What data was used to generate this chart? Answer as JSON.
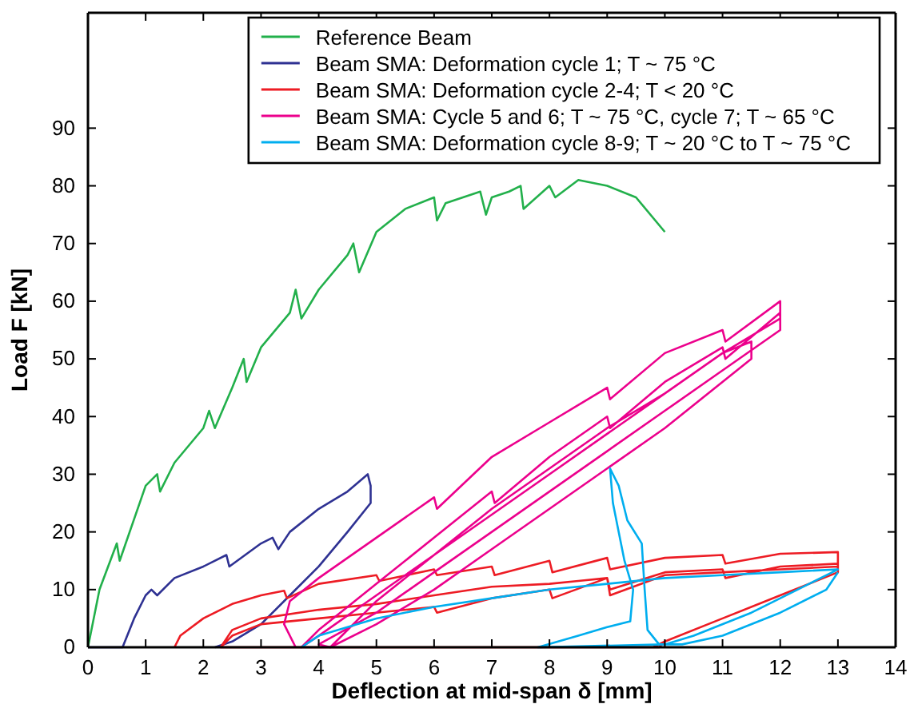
{
  "chart_data": {
    "type": "line",
    "xlabel": "Deflection at mid-span  δ [mm]",
    "ylabel": "Load F [kN]",
    "xlim": [
      0,
      14
    ],
    "ylim": [
      0,
      110
    ],
    "xticks": [
      0,
      1,
      2,
      3,
      4,
      5,
      6,
      7,
      8,
      9,
      10,
      11,
      12,
      13,
      14
    ],
    "yticks": [
      0,
      10,
      20,
      30,
      40,
      50,
      60,
      70,
      80,
      90
    ],
    "grid": false,
    "legend": "top right",
    "marker": "none",
    "line_style": "solid",
    "series": [
      {
        "name": "Reference Beam",
        "color": "#22b04b",
        "x": [
          0,
          0.2,
          0.5,
          0.55,
          1,
          1.2,
          1.25,
          1.5,
          2,
          2.1,
          2.2,
          2.5,
          2.7,
          2.75,
          3,
          3.5,
          3.6,
          3.7,
          4,
          4.5,
          4.6,
          4.7,
          5,
          5.5,
          6,
          6.05,
          6.2,
          6.5,
          6.8,
          6.9,
          7,
          7.3,
          7.5,
          7.55,
          8,
          8.1,
          8.5,
          9,
          9.5,
          10
        ],
        "values": [
          0,
          10,
          18,
          15,
          28,
          30,
          27,
          32,
          38,
          41,
          38,
          45,
          50,
          46,
          52,
          58,
          62,
          57,
          62,
          68,
          70,
          65,
          72,
          76,
          78,
          74,
          77,
          78,
          79,
          75,
          78,
          79,
          80,
          76,
          80,
          78,
          81,
          80,
          78,
          72
        ]
      },
      {
        "name": "Beam SMA: Deformation cycle 1; T ~ 75 °C",
        "color": "#2e3192",
        "x": [
          0,
          0.6,
          0.8,
          1,
          1.1,
          1.2,
          1.5,
          2,
          2.4,
          2.45,
          3,
          3.2,
          3.3,
          3.5,
          4,
          4.5,
          4.85,
          4.9,
          4.9,
          4.5,
          4,
          3.5,
          3,
          2.5,
          2.2
        ],
        "values": [
          0,
          0,
          5,
          9,
          10,
          9,
          12,
          14,
          16,
          14,
          18,
          19,
          17,
          20,
          24,
          27,
          30,
          28,
          25,
          20,
          14,
          9,
          4,
          1,
          0
        ]
      },
      {
        "name": "Beam SMA: Deformation cycle 2-4; T < 20 °C",
        "color": "#ed1c24",
        "x": [
          1.5,
          1.6,
          2,
          2.5,
          3,
          3.4,
          3.45,
          4,
          5,
          5.05,
          6,
          6.05,
          7,
          7.05,
          8,
          8.05,
          9,
          9.05,
          10,
          11,
          11.05,
          12,
          13,
          13,
          12,
          11,
          10,
          9.9,
          2.3,
          2.5,
          3,
          4,
          5,
          6,
          7,
          8,
          8.5,
          9,
          9.05,
          10,
          11,
          11.05,
          12,
          13,
          13,
          12,
          11,
          10,
          9.8,
          2.3,
          2.5,
          3,
          4,
          5,
          6,
          6.05,
          7,
          8,
          8.05,
          9,
          9.05,
          10,
          11,
          12,
          13,
          13,
          12,
          11,
          10,
          9.8
        ],
        "values": [
          0,
          2,
          5,
          7.5,
          9,
          9.8,
          8.5,
          11,
          12.5,
          11.5,
          13.5,
          12.5,
          14,
          12.5,
          15,
          13,
          15.5,
          13.5,
          15.5,
          16,
          14.5,
          16.2,
          16.5,
          13,
          9,
          5,
          1,
          0,
          0,
          3,
          5,
          6.5,
          7.5,
          9,
          10.5,
          11,
          11.5,
          12,
          10,
          13,
          13.5,
          12,
          14,
          14.5,
          13,
          9,
          5,
          1,
          0,
          0,
          2,
          4,
          5,
          6,
          7,
          6,
          8.5,
          10,
          8.5,
          12,
          9,
          12.5,
          13,
          13.5,
          14,
          13,
          9,
          5,
          1,
          0
        ]
      },
      {
        "name": "Beam SMA: Cycle 5 and 6; T ~ 75 °C, cycle 7; T ~ 65 °C",
        "color": "#ec008c",
        "x": [
          3.6,
          3.4,
          3.5,
          4,
          5,
          6,
          6.05,
          7,
          8,
          9,
          9.05,
          10,
          11,
          11.05,
          12,
          12,
          11,
          10,
          9,
          8,
          7,
          6,
          5,
          4,
          3.7,
          4,
          5,
          6,
          7,
          7.05,
          8,
          9,
          9.05,
          10,
          11,
          11.05,
          12,
          12,
          11,
          10,
          9,
          8,
          7,
          6,
          5,
          4,
          4.2,
          5,
          6,
          7,
          8,
          9,
          10,
          11,
          11.5,
          11.5,
          10,
          9,
          8,
          7,
          6,
          5,
          4.2
        ],
        "values": [
          0,
          4,
          8,
          12,
          19,
          26,
          24,
          33,
          39,
          45,
          43,
          51,
          55,
          53,
          60,
          57,
          51,
          44,
          37,
          30,
          23,
          16,
          9,
          2,
          0,
          3,
          11,
          19,
          27,
          25,
          33,
          40,
          38,
          46,
          52,
          50,
          58,
          55,
          48,
          41,
          34,
          27,
          20,
          13,
          6,
          0.5,
          0,
          8,
          16,
          24,
          31,
          38,
          44,
          51,
          53,
          50,
          38,
          31,
          24,
          17,
          10,
          4,
          0
        ]
      },
      {
        "name": "Beam SMA: Deformation cycle 8-9; T ~ 20 °C to T ~ 75 °C",
        "color": "#00aeef",
        "x": [
          3.7,
          4,
          5,
          6,
          7,
          8,
          9,
          10,
          11,
          12,
          13,
          12.5,
          11.5,
          10.5,
          10,
          7.8,
          8.5,
          9,
          9.4,
          9.45,
          9.3,
          9.2,
          9.1,
          9.05,
          9.2,
          9.35,
          9.6,
          9.65,
          9.7,
          9.9,
          10.3,
          11,
          12,
          12.8,
          13
        ],
        "values": [
          0,
          2,
          5,
          7,
          8.5,
          10,
          11,
          12,
          12.5,
          13,
          13.5,
          11,
          6,
          2,
          0.5,
          0,
          2,
          3.5,
          4.5,
          10,
          15,
          20,
          25,
          31,
          28,
          22,
          18,
          10,
          3,
          0.5,
          0.5,
          2,
          6,
          10,
          13
        ]
      }
    ]
  }
}
